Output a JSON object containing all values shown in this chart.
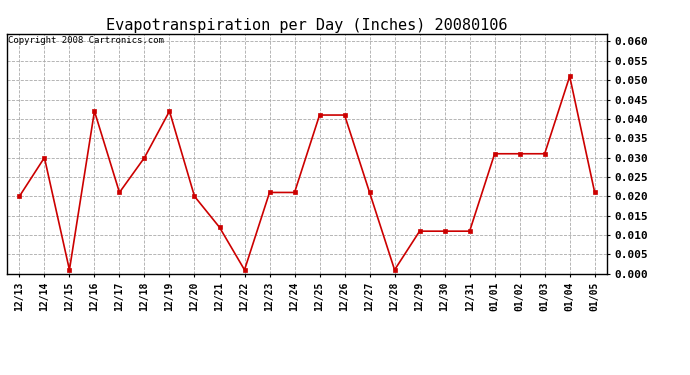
{
  "title": "Evapotranspiration per Day (Inches) 20080106",
  "copyright_text": "Copyright 2008 Cartronics.com",
  "labels": [
    "12/13",
    "12/14",
    "12/15",
    "12/16",
    "12/17",
    "12/18",
    "12/19",
    "12/20",
    "12/21",
    "12/22",
    "12/23",
    "12/24",
    "12/25",
    "12/26",
    "12/27",
    "12/28",
    "12/29",
    "12/30",
    "12/31",
    "01/01",
    "01/02",
    "01/03",
    "01/04",
    "01/05"
  ],
  "values": [
    0.02,
    0.03,
    0.001,
    0.042,
    0.021,
    0.03,
    0.042,
    0.02,
    0.012,
    0.001,
    0.021,
    0.021,
    0.041,
    0.041,
    0.021,
    0.001,
    0.011,
    0.011,
    0.011,
    0.031,
    0.031,
    0.031,
    0.051,
    0.021
  ],
  "line_color": "#cc0000",
  "marker": "s",
  "marker_size": 3,
  "ylim": [
    0.0,
    0.062
  ],
  "yticks": [
    0.0,
    0.005,
    0.01,
    0.015,
    0.02,
    0.025,
    0.03,
    0.035,
    0.04,
    0.045,
    0.05,
    0.055,
    0.06
  ],
  "bg_color": "#ffffff",
  "grid_color": "#aaaaaa",
  "title_fontsize": 11,
  "copyright_fontsize": 6.5,
  "tick_fontsize": 7,
  "ytick_fontsize": 8,
  "linewidth": 1.2
}
